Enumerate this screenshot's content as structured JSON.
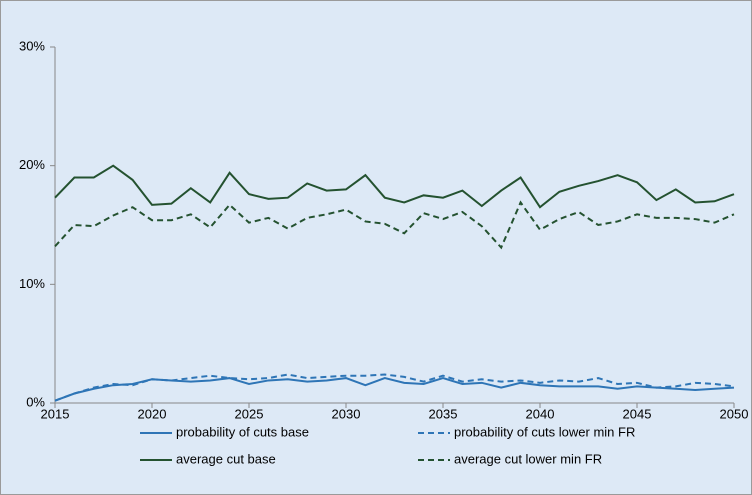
{
  "chart_data": {
    "type": "line",
    "x": [
      2015,
      2016,
      2017,
      2018,
      2019,
      2020,
      2021,
      2022,
      2023,
      2024,
      2025,
      2026,
      2027,
      2028,
      2029,
      2030,
      2031,
      2032,
      2033,
      2034,
      2035,
      2036,
      2037,
      2038,
      2039,
      2040,
      2041,
      2042,
      2043,
      2044,
      2045,
      2046,
      2047,
      2048,
      2049,
      2050
    ],
    "xlim": [
      2015,
      2050
    ],
    "xticks": [
      2015,
      2020,
      2025,
      2030,
      2035,
      2040,
      2045,
      2050
    ],
    "ylim": [
      0,
      30
    ],
    "yticks": [
      {
        "value": 0,
        "label": "0%"
      },
      {
        "value": 10,
        "label": "10%"
      },
      {
        "value": 20,
        "label": "20%"
      },
      {
        "value": 30,
        "label": "30%"
      }
    ],
    "legend": "bottom",
    "series": [
      {
        "name": "probability of cuts base",
        "color": "#2e75b6",
        "line_style": "solid",
        "values": [
          0.2,
          0.8,
          1.2,
          1.5,
          1.6,
          2.0,
          1.9,
          1.8,
          1.9,
          2.1,
          1.6,
          1.9,
          2.0,
          1.8,
          1.9,
          2.1,
          1.5,
          2.1,
          1.7,
          1.6,
          2.1,
          1.6,
          1.7,
          1.3,
          1.7,
          1.5,
          1.4,
          1.4,
          1.4,
          1.2,
          1.4,
          1.3,
          1.2,
          1.1,
          1.2,
          1.3
        ]
      },
      {
        "name": "probability of cuts lower min FR",
        "color": "#2e75b6",
        "line_style": "dashed",
        "values": [
          0.2,
          0.8,
          1.3,
          1.6,
          1.5,
          2.0,
          1.9,
          2.1,
          2.3,
          2.1,
          2.0,
          2.1,
          2.4,
          2.1,
          2.2,
          2.3,
          2.3,
          2.4,
          2.2,
          1.8,
          2.3,
          1.8,
          2.0,
          1.8,
          1.9,
          1.7,
          1.9,
          1.8,
          2.1,
          1.6,
          1.7,
          1.3,
          1.4,
          1.7,
          1.6,
          1.4
        ]
      },
      {
        "name": "average cut base",
        "color": "#245230",
        "line_style": "solid",
        "values": [
          17.3,
          19.0,
          19.0,
          20.0,
          18.8,
          16.7,
          16.8,
          18.1,
          16.9,
          19.4,
          17.6,
          17.2,
          17.3,
          18.5,
          17.9,
          18.0,
          19.2,
          17.3,
          16.9,
          17.5,
          17.3,
          17.9,
          16.6,
          17.9,
          19.0,
          16.5,
          17.8,
          18.3,
          18.7,
          19.2,
          18.6,
          17.1,
          18.0,
          16.9,
          17.0,
          17.6
        ]
      },
      {
        "name": "average cut lower min FR",
        "color": "#245230",
        "line_style": "dashed",
        "values": [
          13.2,
          15.0,
          14.9,
          15.8,
          16.5,
          15.4,
          15.4,
          15.9,
          14.8,
          16.7,
          15.2,
          15.6,
          14.7,
          15.6,
          15.9,
          16.3,
          15.3,
          15.1,
          14.3,
          16.0,
          15.5,
          16.1,
          14.9,
          13.1,
          16.9,
          14.6,
          15.5,
          16.1,
          15.0,
          15.3,
          15.9,
          15.6,
          15.6,
          15.5,
          15.2,
          15.9
        ]
      }
    ]
  }
}
